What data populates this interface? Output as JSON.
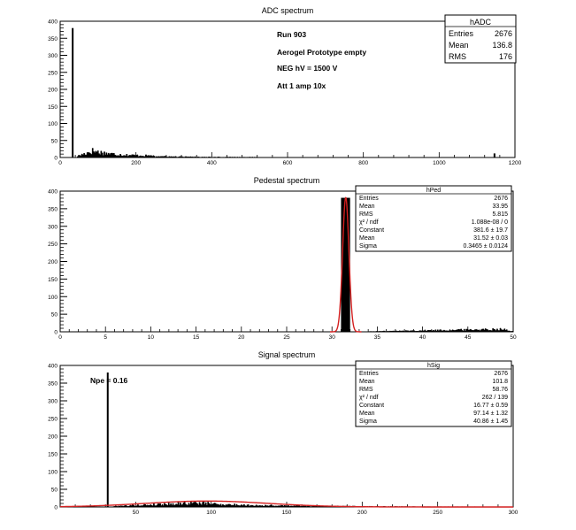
{
  "chart_data": [
    {
      "type": "bar",
      "title": "ADC spectrum",
      "xlabel": "",
      "ylabel": "",
      "xlim": [
        0,
        1200
      ],
      "ylim": [
        0,
        400
      ],
      "xticks": [
        "0",
        "200",
        "400",
        "600",
        "800",
        "1000",
        "1200"
      ],
      "yticks": [
        "0",
        "50",
        "100",
        "150",
        "200",
        "250",
        "300",
        "350",
        "400"
      ],
      "annotations": [
        "Run  903",
        "Aerogel Prototype empty",
        "NEG hV = 1500 V",
        "Att 1 amp 10x"
      ],
      "stats": {
        "name": "hADC",
        "rows": [
          {
            "label": "Entries",
            "value": "2676"
          },
          {
            "label": "Mean",
            "value": "136.8"
          },
          {
            "label": "RMS",
            "value": "176"
          }
        ]
      },
      "spikes": [
        {
          "x": 33,
          "y": 380
        },
        {
          "x": 1146,
          "y": 12
        }
      ],
      "bumps": [
        {
          "from": 45,
          "to": 250,
          "peak_x": 85,
          "peak": 24,
          "tail": 5
        },
        {
          "from": 250,
          "to": 520,
          "peak_x": 250,
          "peak": 4,
          "tail": 1
        }
      ]
    },
    {
      "type": "bar",
      "title": "Pedestal spectrum",
      "xlabel": "",
      "ylabel": "",
      "xlim": [
        0,
        50
      ],
      "ylim": [
        0,
        400
      ],
      "xticks": [
        "0",
        "5",
        "10",
        "15",
        "20",
        "25",
        "30",
        "35",
        "40",
        "45",
        "50"
      ],
      "yticks": [
        "0",
        "50",
        "100",
        "150",
        "200",
        "250",
        "300",
        "350",
        "400"
      ],
      "stats": {
        "name": "hPed",
        "rows": [
          {
            "label": "Entries",
            "value": "2676"
          },
          {
            "label": "Mean",
            "value": "33.95"
          },
          {
            "label": "RMS",
            "value": "5.815"
          },
          {
            "label": "χ² / ndf",
            "value": "1.088e-08 / 0"
          },
          {
            "label": "Constant",
            "value": "381.6 ± 19.7"
          },
          {
            "label": "Mean",
            "value": "31.52 ± 0.03"
          },
          {
            "label": "Sigma",
            "value": "0.3465 ± 0.0124"
          }
        ]
      },
      "bars": [
        {
          "x0": 31.0,
          "x1": 32.0,
          "y": 381
        }
      ],
      "bumps": [
        {
          "from": 34,
          "to": 50,
          "peak_x": 49,
          "peak": 9,
          "tail": 1
        }
      ],
      "fit": {
        "type": "gaussian",
        "constant": 381.6,
        "mean": 31.52,
        "sigma": 0.3465,
        "color": "#d42020"
      }
    },
    {
      "type": "bar",
      "title": "Signal spectrum",
      "xlabel": "",
      "ylabel": "",
      "xlim": [
        0,
        300
      ],
      "ylim": [
        0,
        400
      ],
      "xticks": [
        "50",
        "100",
        "150",
        "200",
        "250",
        "300"
      ],
      "yticks": [
        "0",
        "50",
        "100",
        "150",
        "200",
        "250",
        "300",
        "350",
        "400"
      ],
      "annotations": [
        "Npe = 0.16"
      ],
      "stats": {
        "name": "hSig",
        "rows": [
          {
            "label": "Entries",
            "value": "2676"
          },
          {
            "label": "Mean",
            "value": "101.8"
          },
          {
            "label": "RMS",
            "value": "58.76"
          },
          {
            "label": "χ² / ndf",
            "value": "262 / 139"
          },
          {
            "label": "Constant",
            "value": "16.77 ± 0.59"
          },
          {
            "label": "Mean",
            "value": "97.14 ± 1.32"
          },
          {
            "label": "Sigma",
            "value": "40.86 ± 1.45"
          }
        ]
      },
      "spikes": [
        {
          "x": 31.5,
          "y": 380
        }
      ],
      "bumps": [
        {
          "from": 35,
          "to": 180,
          "peak_x": 90,
          "peak": 14,
          "tail": 2
        },
        {
          "from": 180,
          "to": 280,
          "peak_x": 180,
          "peak": 3,
          "tail": 0.5
        }
      ],
      "fit": {
        "type": "gaussian",
        "constant": 16.77,
        "mean": 97.14,
        "sigma": 40.86,
        "color": "#d42020"
      }
    }
  ]
}
